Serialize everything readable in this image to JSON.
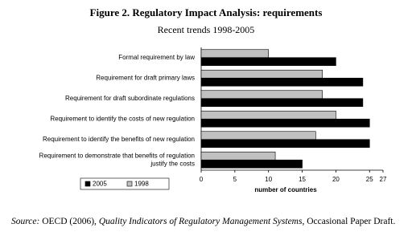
{
  "chart_data": {
    "type": "hbar",
    "title": "Figure 2. Regulatory Impact Analysis: requirements",
    "subtitle": "Recent trends 1998-2005",
    "x_label": "number of countries",
    "categories": [
      "Formal requirement by law",
      "Requirement for draft primary laws",
      "Requirement for draft subordinate regulations",
      "Requirement to identify the costs of new regulation",
      "Requirement to identify the benefits of new regulation",
      [
        "Requirement to demonstrate that benefits of regulation",
        "justify the costs"
      ]
    ],
    "series": [
      {
        "name": "1998",
        "color": "#c0c0c0",
        "values": [
          10,
          18,
          18,
          20,
          17,
          11
        ]
      },
      {
        "name": "2005",
        "color": "#000000",
        "values": [
          20,
          24,
          24,
          25,
          25,
          15
        ]
      }
    ],
    "xlim": [
      0,
      27
    ],
    "xticks": [
      0,
      5,
      10,
      15,
      20,
      25,
      27
    ],
    "legend": "bottom-left",
    "source": {
      "label": "Source:",
      "text": "OECD (2006),",
      "title": "Quality Indicators of Regulatory Management Systems",
      "tail": ", Occasional Paper Draft."
    }
  }
}
